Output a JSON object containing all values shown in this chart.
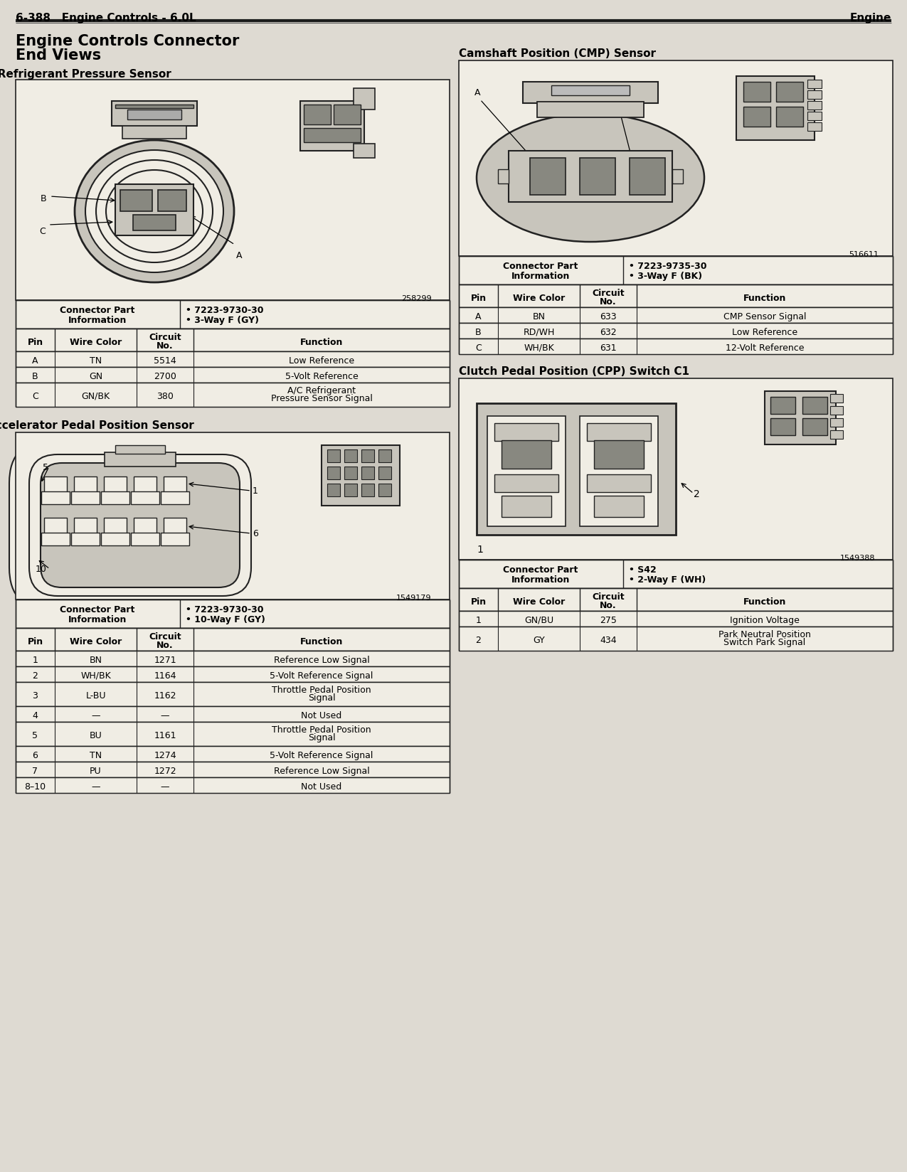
{
  "page_header_left": "6-388   Engine Controls - 6.0L",
  "page_header_right": "Engine",
  "bg_color": "#dedad2",
  "section1_title": "A/C Refrigerant Pressure Sensor",
  "section1_connector_info_1": "• 7223-9730-30",
  "section1_connector_info_2": "• 3-Way F (GY)",
  "section1_pins": [
    {
      "pin": "A",
      "wire_color": "TN",
      "circuit_no": "5514",
      "function": "Low Reference"
    },
    {
      "pin": "B",
      "wire_color": "GN",
      "circuit_no": "2700",
      "function": "5-Volt Reference"
    },
    {
      "pin": "C",
      "wire_color": "GN/BK",
      "circuit_no": "380",
      "function": "A/C Refrigerant\nPressure Sensor Signal"
    }
  ],
  "section2_title": "Accelerator Pedal Position Sensor",
  "section2_connector_info_1": "• 7223-9730-30",
  "section2_connector_info_2": "• 10-Way F (GY)",
  "section2_pins": [
    {
      "pin": "1",
      "wire_color": "BN",
      "circuit_no": "1271",
      "function": "Reference Low Signal"
    },
    {
      "pin": "2",
      "wire_color": "WH/BK",
      "circuit_no": "1164",
      "function": "5-Volt Reference Signal"
    },
    {
      "pin": "3",
      "wire_color": "L-BU",
      "circuit_no": "1162",
      "function": "Throttle Pedal Position\nSignal"
    },
    {
      "pin": "4",
      "wire_color": "—",
      "circuit_no": "—",
      "function": "Not Used"
    },
    {
      "pin": "5",
      "wire_color": "BU",
      "circuit_no": "1161",
      "function": "Throttle Pedal Position\nSignal"
    },
    {
      "pin": "6",
      "wire_color": "TN",
      "circuit_no": "1274",
      "function": "5-Volt Reference Signal"
    },
    {
      "pin": "7",
      "wire_color": "PU",
      "circuit_no": "1272",
      "function": "Reference Low Signal"
    },
    {
      "pin": "8–10",
      "wire_color": "—",
      "circuit_no": "—",
      "function": "Not Used"
    }
  ],
  "section3_title": "Camshaft Position (CMP) Sensor",
  "section3_connector_info_1": "• 7223-9735-30",
  "section3_connector_info_2": "• 3-Way F (BK)",
  "section3_pins": [
    {
      "pin": "A",
      "wire_color": "BN",
      "circuit_no": "633",
      "function": "CMP Sensor Signal"
    },
    {
      "pin": "B",
      "wire_color": "RD/WH",
      "circuit_no": "632",
      "function": "Low Reference"
    },
    {
      "pin": "C",
      "wire_color": "WH/BK",
      "circuit_no": "631",
      "function": "12-Volt Reference"
    }
  ],
  "section4_title": "Clutch Pedal Position (CPP) Switch C1",
  "section4_connector_info_1": "• S42",
  "section4_connector_info_2": "• 2-Way F (WH)",
  "section4_pins": [
    {
      "pin": "1",
      "wire_color": "GN/BU",
      "circuit_no": "275",
      "function": "Ignition Voltage"
    },
    {
      "pin": "2",
      "wire_color": "GY",
      "circuit_no": "434",
      "function": "Park Neutral Position\nSwitch Park Signal"
    }
  ],
  "diag1_num": "258299",
  "diag2_num": "1549179",
  "diag3_num": "516611",
  "diag4_num": "1549388"
}
